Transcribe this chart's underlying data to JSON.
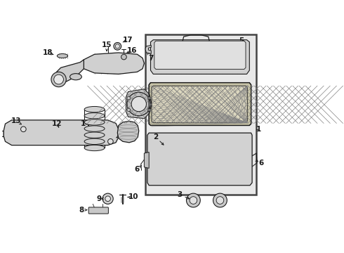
{
  "bg": "#f5f5f5",
  "lc": "#1a1a1a",
  "box_bg": "#e8e8e8",
  "part_bg": "#d8d8d8",
  "filter_bg": "#ddd8c0"
}
